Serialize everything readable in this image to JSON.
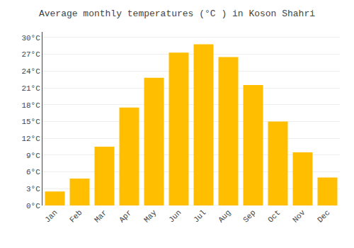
{
  "chart_data": {
    "type": "bar",
    "title": "Average monthly temperatures (°C ) in Koson Shahri",
    "categories": [
      "Jan",
      "Feb",
      "Mar",
      "Apr",
      "May",
      "Jun",
      "Jul",
      "Aug",
      "Sep",
      "Oct",
      "Nov",
      "Dec"
    ],
    "values": [
      2.5,
      4.8,
      10.5,
      17.5,
      22.8,
      27.3,
      28.8,
      26.5,
      21.5,
      15.0,
      9.5,
      5.0
    ],
    "color": "#FFBF00",
    "ylim": [
      0,
      31
    ],
    "yticks": [
      {
        "value": 0,
        "label": "0°C"
      },
      {
        "value": 3,
        "label": "3°C"
      },
      {
        "value": 6,
        "label": "6°C"
      },
      {
        "value": 9,
        "label": "9°C"
      },
      {
        "value": 12,
        "label": "12°C"
      },
      {
        "value": 15,
        "label": "15°C"
      },
      {
        "value": 18,
        "label": "18°C"
      },
      {
        "value": 21,
        "label": "21°C"
      },
      {
        "value": 24,
        "label": "24°C"
      },
      {
        "value": 27,
        "label": "27°C"
      },
      {
        "value": 30,
        "label": "30°C"
      }
    ],
    "grid": true
  }
}
